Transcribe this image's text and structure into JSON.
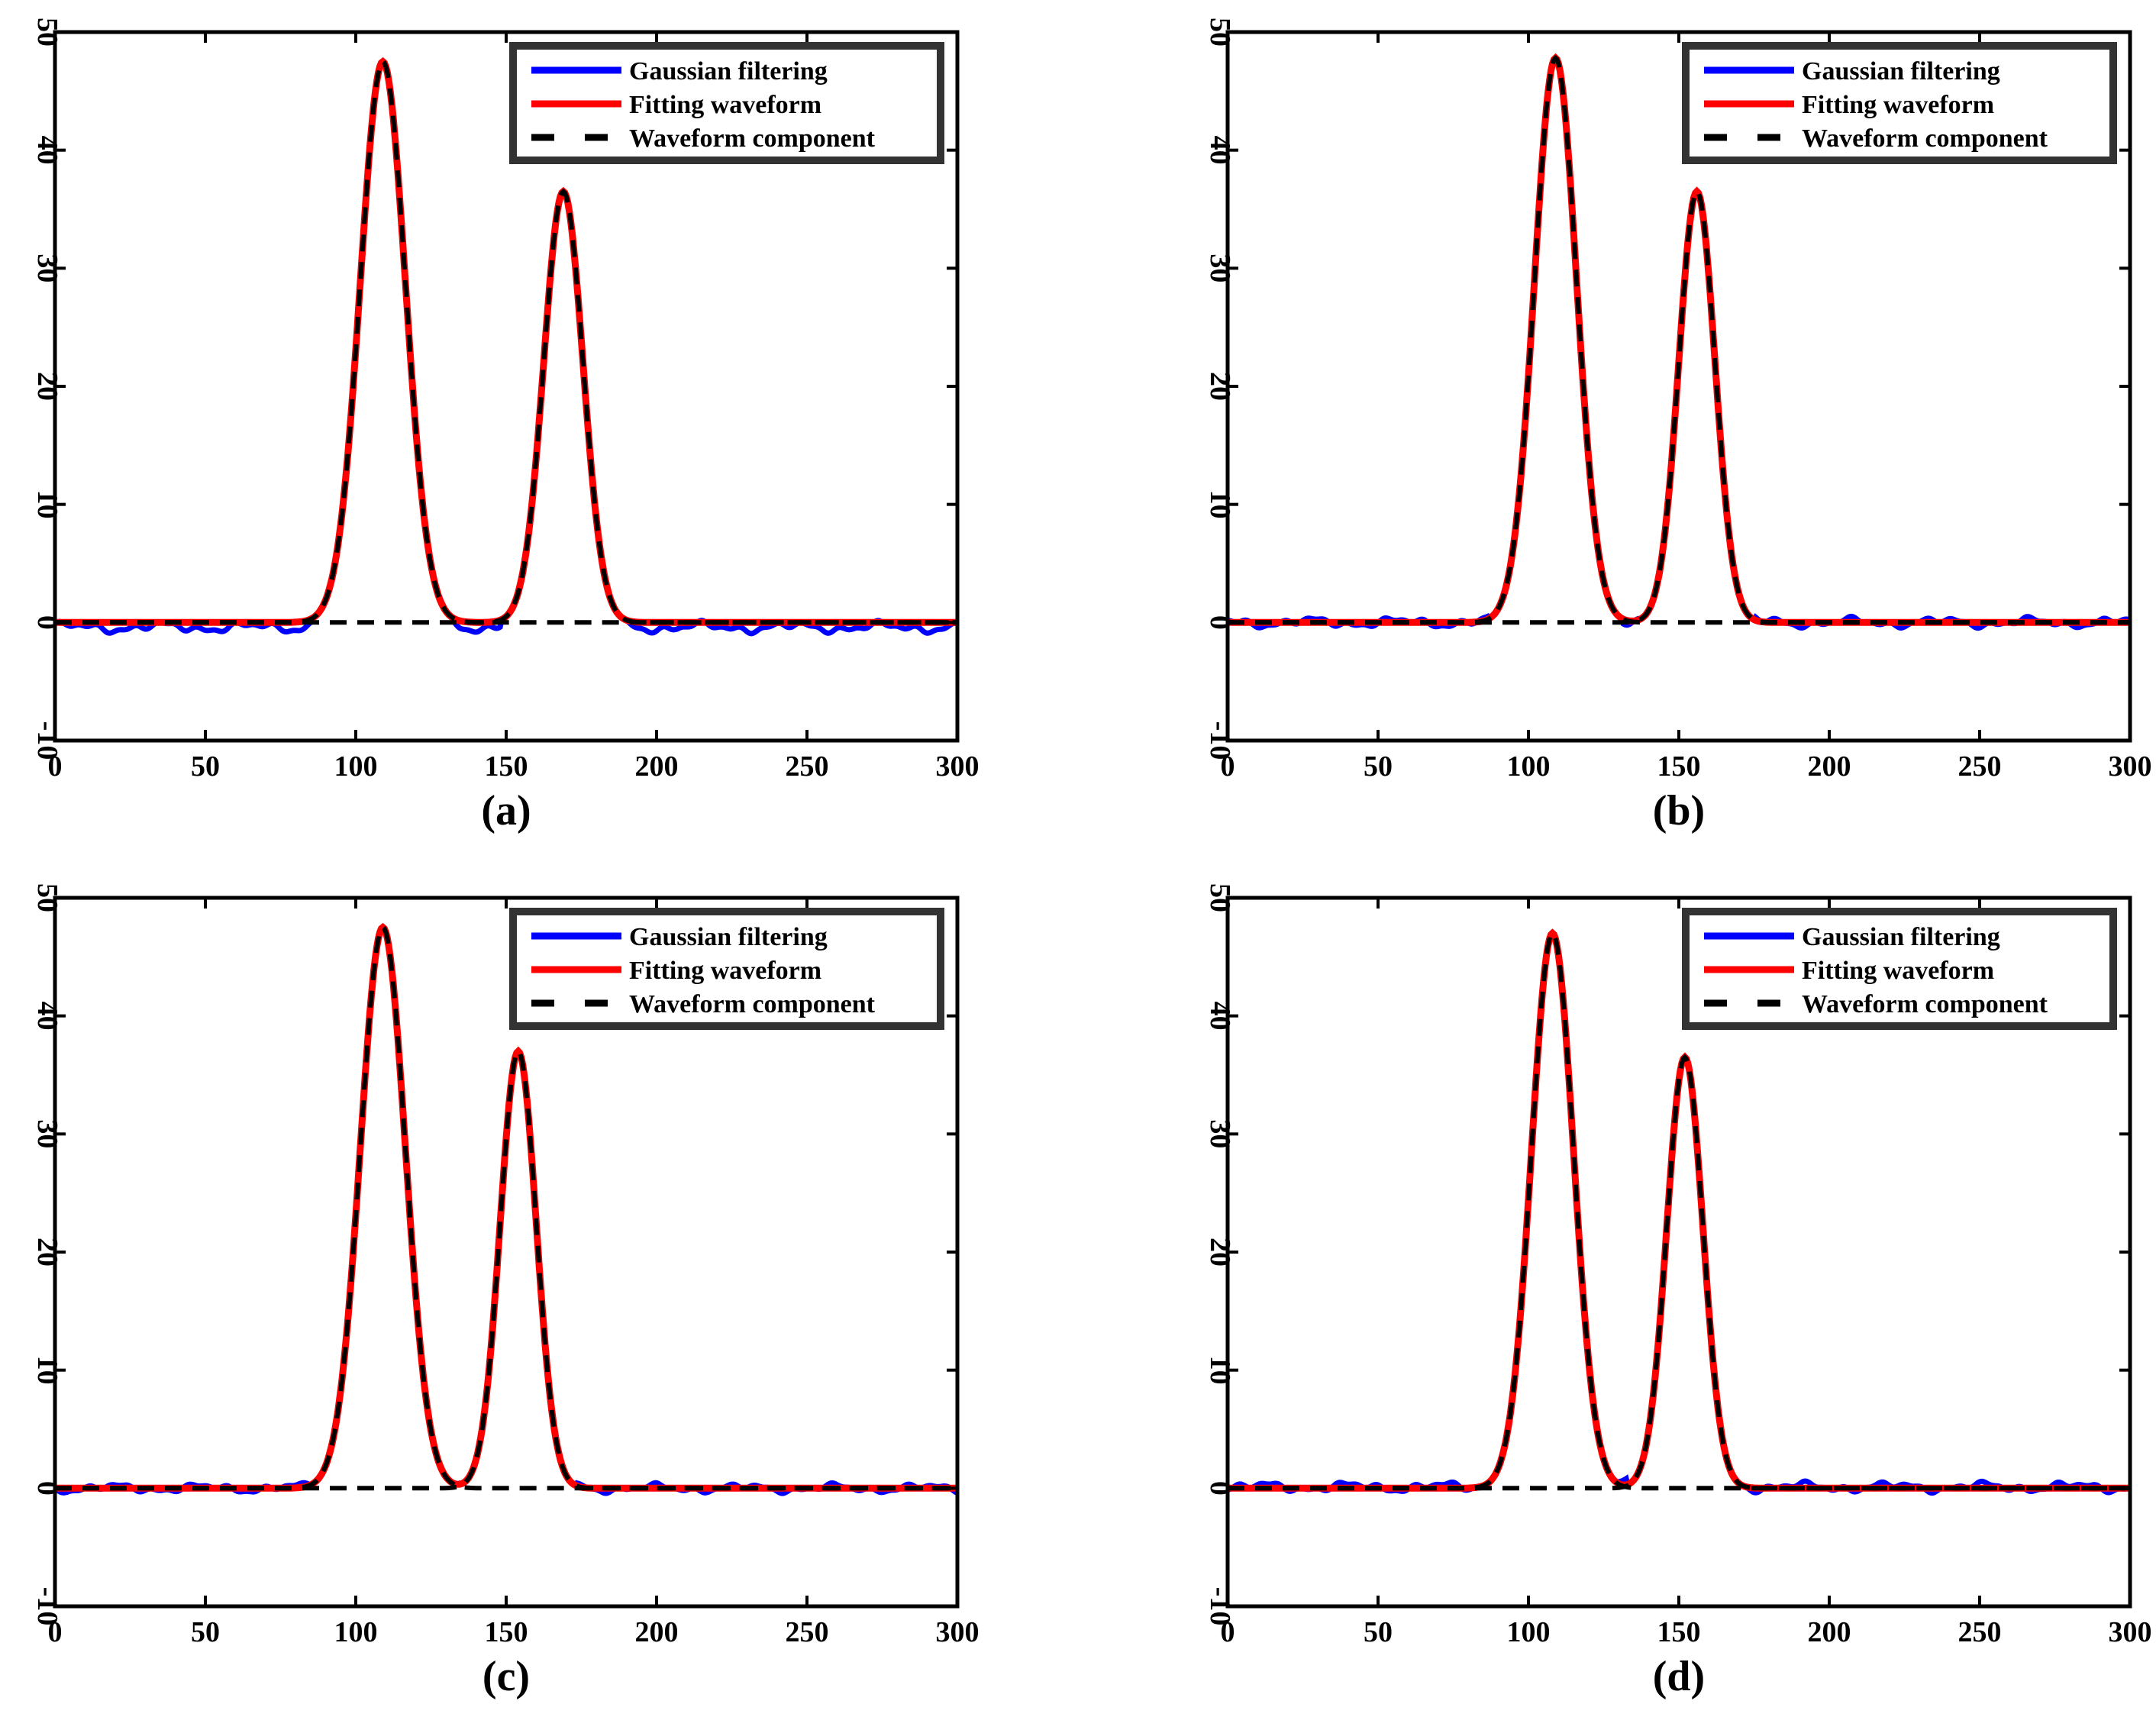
{
  "figure_title": "",
  "colors": {
    "gaussian": "#0000ff",
    "fitting": "#ff0000",
    "component": "#000000",
    "axes": "#000000"
  },
  "legend_labels": [
    "Gaussian filtering",
    "Fitting waveform",
    "Waveform component"
  ],
  "chart_data": [
    {
      "type": "line",
      "panel_label": "(a)",
      "xlim": [
        0,
        300
      ],
      "ylim": [
        -10,
        50
      ],
      "xticks": [
        "0",
        "50",
        "100",
        "150",
        "200",
        "250",
        "300"
      ],
      "yticks": [
        "-10",
        "0",
        "10",
        "20",
        "30",
        "40",
        "50"
      ],
      "legend_position": "top-right",
      "peaks": [
        {
          "center": 109,
          "amplitude": 47.5,
          "sigma": 7.5
        },
        {
          "center": 169,
          "amplitude": 36.5,
          "sigma": 6.5
        }
      ],
      "noise_amplitude": 0.5,
      "noise_offset": -0.4,
      "series": [
        {
          "name": "Gaussian filtering",
          "role": "gaussian"
        },
        {
          "name": "Fitting waveform",
          "role": "fitting"
        },
        {
          "name": "Waveform component",
          "role": "component"
        }
      ]
    },
    {
      "type": "line",
      "panel_label": "(b)",
      "xlim": [
        0,
        300
      ],
      "ylim": [
        -10,
        50
      ],
      "xticks": [
        "0",
        "50",
        "100",
        "150",
        "200",
        "250",
        "300"
      ],
      "yticks": [
        "-10",
        "0",
        "10",
        "20",
        "30",
        "40",
        "50"
      ],
      "legend_position": "top-right",
      "peaks": [
        {
          "center": 109,
          "amplitude": 47.8,
          "sigma": 7.0
        },
        {
          "center": 156,
          "amplitude": 36.5,
          "sigma": 6.0
        }
      ],
      "noise_amplitude": 0.45,
      "noise_offset": 0.0,
      "series": [
        {
          "name": "Gaussian filtering",
          "role": "gaussian"
        },
        {
          "name": "Fitting waveform",
          "role": "fitting"
        },
        {
          "name": "Waveform component",
          "role": "component"
        }
      ]
    },
    {
      "type": "line",
      "panel_label": "(c)",
      "xlim": [
        0,
        300
      ],
      "ylim": [
        -10,
        50
      ],
      "xticks": [
        "0",
        "50",
        "100",
        "150",
        "200",
        "250",
        "300"
      ],
      "yticks": [
        "-10",
        "0",
        "10",
        "20",
        "30",
        "40",
        "50"
      ],
      "legend_position": "top-right",
      "peaks": [
        {
          "center": 109,
          "amplitude": 47.5,
          "sigma": 7.5
        },
        {
          "center": 154,
          "amplitude": 37.0,
          "sigma": 6.0
        }
      ],
      "noise_amplitude": 0.4,
      "noise_offset": 0.0,
      "series": [
        {
          "name": "Gaussian filtering",
          "role": "gaussian"
        },
        {
          "name": "Fitting waveform",
          "role": "fitting"
        },
        {
          "name": "Waveform component",
          "role": "component"
        }
      ]
    },
    {
      "type": "line",
      "panel_label": "(d)",
      "xlim": [
        0,
        300
      ],
      "ylim": [
        -10,
        50
      ],
      "xticks": [
        "0",
        "50",
        "100",
        "150",
        "200",
        "250",
        "300"
      ],
      "yticks": [
        "-10",
        "0",
        "10",
        "20",
        "30",
        "40",
        "50"
      ],
      "legend_position": "top-right",
      "peaks": [
        {
          "center": 108,
          "amplitude": 47.0,
          "sigma": 7.0
        },
        {
          "center": 152,
          "amplitude": 36.5,
          "sigma": 6.0
        }
      ],
      "noise_amplitude": 0.45,
      "noise_offset": 0.1,
      "series": [
        {
          "name": "Gaussian filtering",
          "role": "gaussian"
        },
        {
          "name": "Fitting waveform",
          "role": "fitting"
        },
        {
          "name": "Waveform component",
          "role": "component"
        }
      ]
    }
  ]
}
